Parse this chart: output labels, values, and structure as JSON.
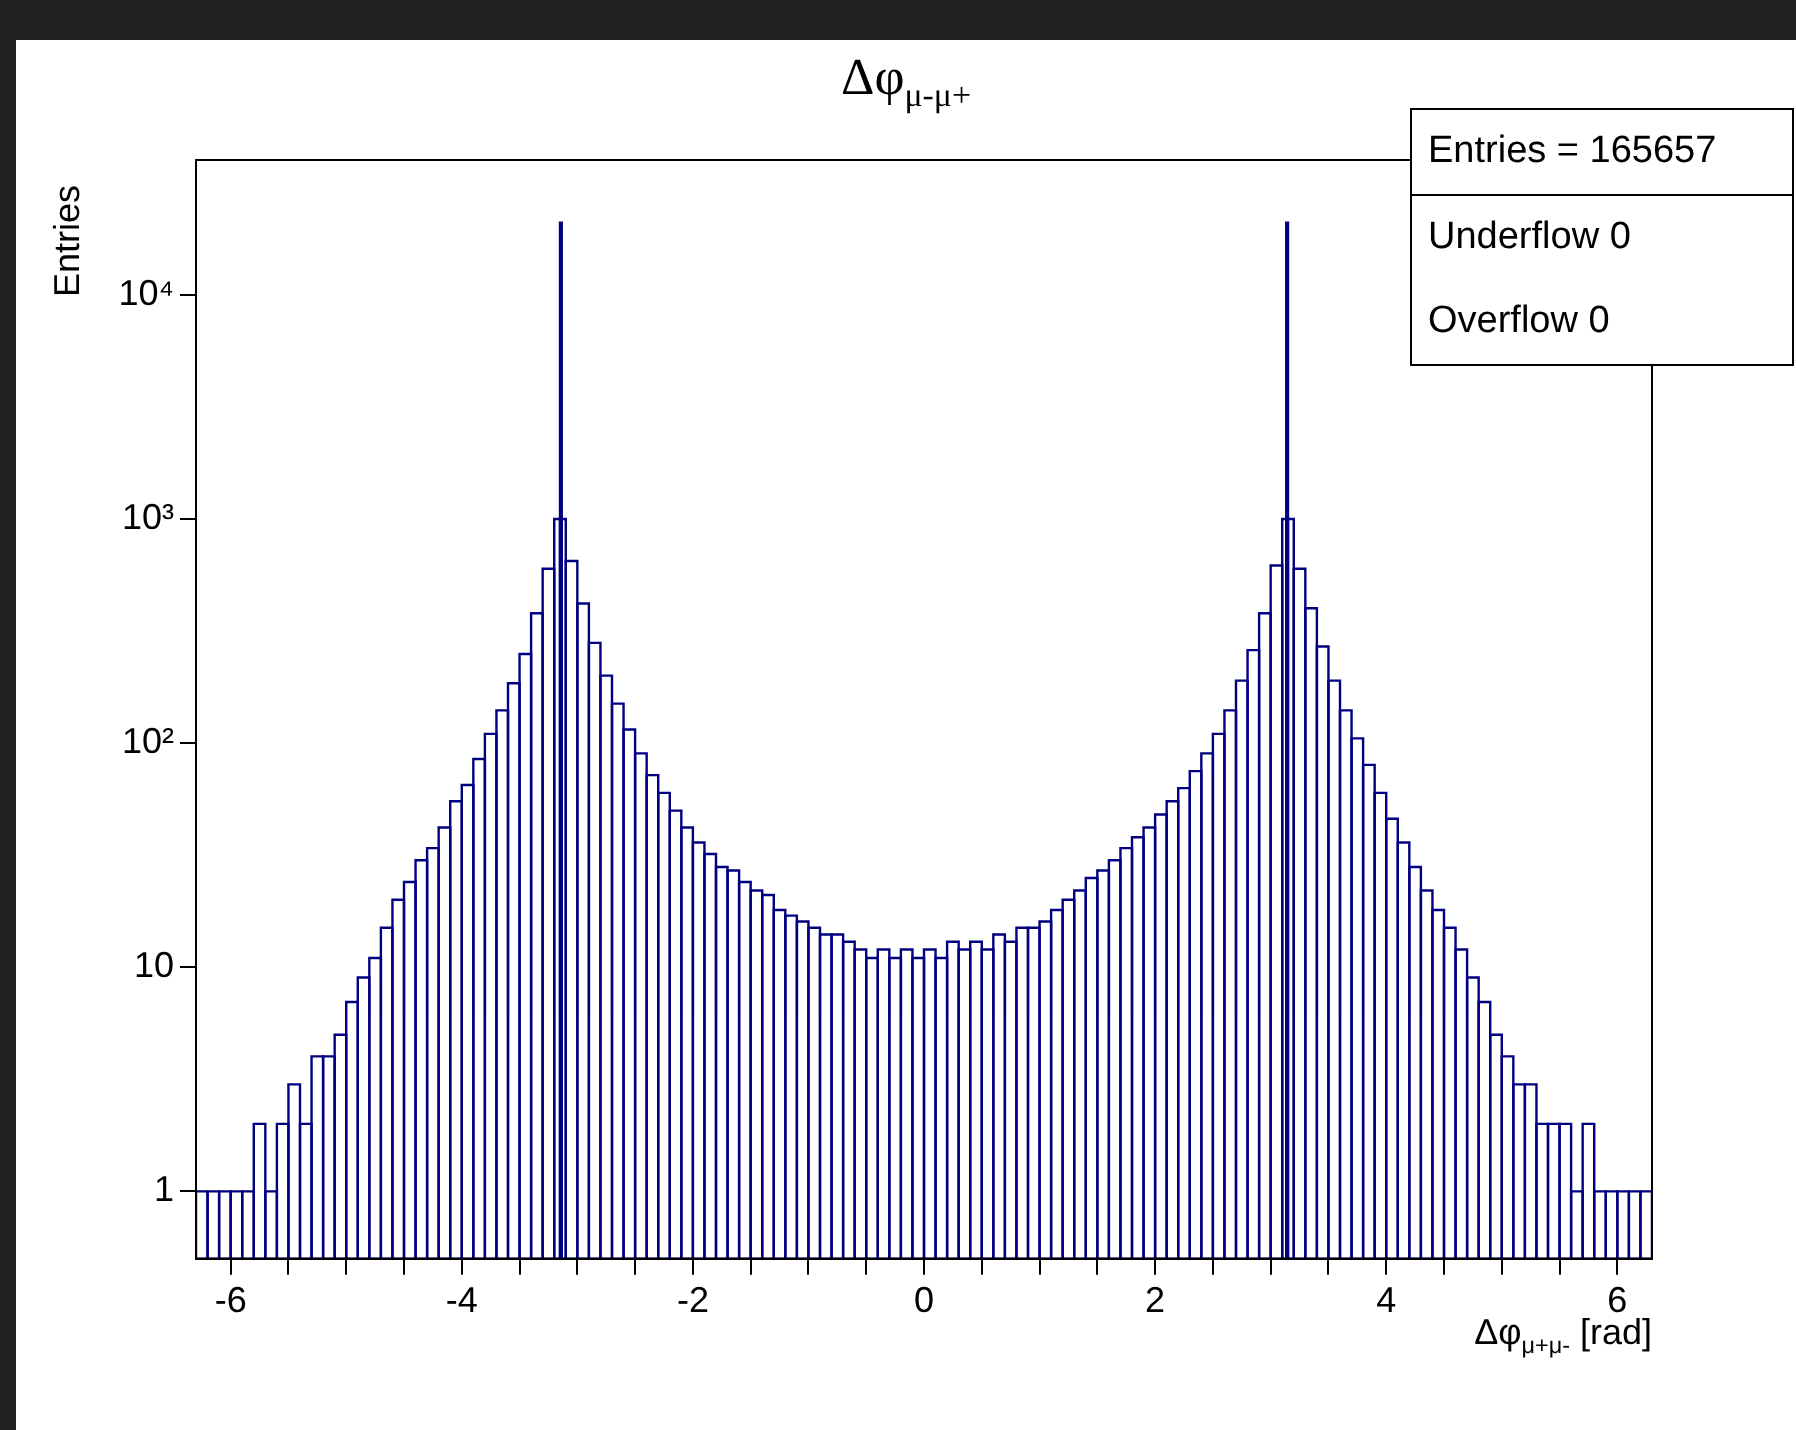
{
  "chart_data": {
    "type": "histogram",
    "title": "Δφ$_{μ-μ+}$",
    "xlabel": "Δφ$_{μ+μ-}$ [rad]",
    "ylabel": "Entries",
    "annotations": [
      "Entries = 165657",
      "Underflow 0",
      "Overflow 0"
    ],
    "color": "#000080",
    "log": "y",
    "grid": false,
    "legend": false,
    "xlim": [
      -6.3,
      6.3
    ],
    "ylim": [
      0.5,
      40000
    ],
    "xticks": [
      -6,
      {
        "value": -5.5,
        "label": null
      },
      {
        "value": -5,
        "label": null
      },
      {
        "value": -4.5,
        "label": null
      },
      -4,
      {
        "value": -3.5,
        "label": null
      },
      {
        "value": -3,
        "label": null
      },
      {
        "value": -2.5,
        "label": null
      },
      -2,
      {
        "value": -1.5,
        "label": null
      },
      {
        "value": -1,
        "label": null
      },
      {
        "value": -0.5,
        "label": null
      },
      0,
      {
        "value": 0.5,
        "label": null
      },
      {
        "value": 1,
        "label": null
      },
      {
        "value": 1.5,
        "label": null
      },
      2,
      {
        "value": 2.5,
        "label": null
      },
      {
        "value": 3,
        "label": null
      },
      {
        "value": 3.5,
        "label": null
      },
      4,
      {
        "value": 4.5,
        "label": null
      },
      {
        "value": 5,
        "label": null
      },
      {
        "value": 5.5,
        "label": null
      },
      6
    ],
    "yticks": [
      1,
      10,
      {
        "value": 100,
        "label": "10²"
      },
      {
        "value": 1000,
        "label": "10³"
      },
      {
        "value": 10000,
        "label": "10⁴"
      }
    ],
    "bins": [
      -6.3,
      -6.2,
      -6.1,
      -6.0,
      -5.9,
      -5.8,
      -5.7,
      -5.6,
      -5.5,
      -5.4,
      -5.3,
      -5.2,
      -5.1,
      -5.0,
      -4.9,
      -4.8,
      -4.7,
      -4.6,
      -4.5,
      -4.4,
      -4.3,
      -4.2,
      -4.1,
      -4.0,
      -3.9,
      -3.8,
      -3.7,
      -3.6,
      -3.5,
      -3.4,
      -3.3,
      -3.2,
      -3.15,
      -3.135,
      -3.1,
      -3.0,
      -2.9,
      -2.8,
      -2.7,
      -2.6,
      -2.5,
      -2.4,
      -2.3,
      -2.2,
      -2.1,
      -2.0,
      -1.9,
      -1.8,
      -1.7,
      -1.6,
      -1.5,
      -1.4,
      -1.3,
      -1.2,
      -1.1,
      -1.0,
      -0.9,
      -0.8,
      -0.7,
      -0.6,
      -0.5,
      -0.4,
      -0.3,
      -0.2,
      -0.1,
      0,
      0.1,
      0.2,
      0.3,
      0.4,
      0.5,
      0.6,
      0.7,
      0.8,
      0.9,
      1.0,
      1.1,
      1.2,
      1.3,
      1.4,
      1.5,
      1.6,
      1.7,
      1.8,
      1.9,
      2.0,
      2.1,
      2.2,
      2.3,
      2.4,
      2.5,
      2.6,
      2.7,
      2.8,
      2.9,
      3.0,
      3.1,
      3.135,
      3.15,
      3.2,
      3.3,
      3.4,
      3.5,
      3.6,
      3.7,
      3.8,
      3.9,
      4.0,
      4.1,
      4.2,
      4.3,
      4.4,
      4.5,
      4.6,
      4.7,
      4.8,
      4.9,
      5.0,
      5.1,
      5.2,
      5.3,
      5.4,
      5.5,
      5.6,
      5.7,
      5.8,
      5.9,
      6.0,
      6.1,
      6.2,
      6.3
    ],
    "values": [
      1,
      1,
      1,
      1,
      1,
      2,
      1,
      2,
      3,
      2,
      4,
      4,
      5,
      7,
      9,
      11,
      15,
      20,
      24,
      30,
      34,
      42,
      55,
      65,
      85,
      110,
      140,
      185,
      250,
      380,
      600,
      1000,
      21000,
      1000,
      650,
      420,
      280,
      200,
      150,
      115,
      90,
      72,
      60,
      50,
      42,
      36,
      32,
      28,
      27,
      24,
      22,
      21,
      18,
      17,
      16,
      15,
      14,
      14,
      13,
      12,
      11,
      12,
      11,
      12,
      11,
      12,
      11,
      13,
      12,
      13,
      12,
      14,
      13,
      15,
      15,
      16,
      18,
      20,
      22,
      25,
      27,
      30,
      34,
      38,
      42,
      48,
      55,
      63,
      75,
      90,
      110,
      140,
      190,
      260,
      380,
      620,
      1000,
      21000,
      1000,
      600,
      400,
      270,
      190,
      140,
      105,
      80,
      60,
      46,
      36,
      28,
      22,
      18,
      15,
      12,
      9,
      7,
      5,
      4,
      3,
      3,
      2,
      2,
      2,
      1,
      2,
      1,
      1,
      1,
      1,
      1
    ]
  }
}
